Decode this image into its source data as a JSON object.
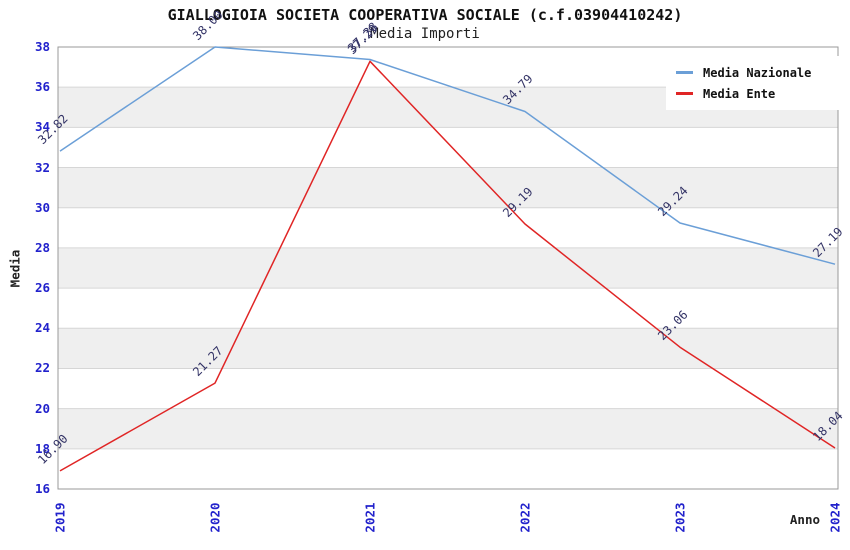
{
  "header": {
    "title": "GIALLOGIOIA SOCIETA COOPERATIVA SOCIALE (c.f.03904410242)",
    "subtitle": "Media Importi"
  },
  "chart_data": {
    "type": "line",
    "title": "GIALLOGIOIA SOCIETA COOPERATIVA SOCIALE (c.f.03904410242)",
    "subtitle": "Media Importi",
    "xlabel": "Anno",
    "ylabel": "Media",
    "categories": [
      "2019",
      "2020",
      "2021",
      "2022",
      "2023",
      "2024"
    ],
    "y_ticks": [
      "16",
      "18",
      "20",
      "22",
      "24",
      "26",
      "28",
      "30",
      "32",
      "34",
      "36",
      "38"
    ],
    "ylim": [
      16,
      38
    ],
    "grid": "horizontal gridlines with alternating gray/white bands",
    "legend_position": "top-right",
    "series": [
      {
        "name": "Media Nazionale",
        "color": "#6b9fd7",
        "values": [
          32.82,
          38.0,
          37.38,
          34.79,
          29.24,
          27.19
        ],
        "labels": [
          "32.82",
          "38.00",
          "37.38",
          "34.79",
          "29.24",
          "27.19"
        ]
      },
      {
        "name": "Media Ente",
        "color": "#e02525",
        "values": [
          16.9,
          21.27,
          37.29,
          29.19,
          23.06,
          18.04
        ],
        "labels": [
          "16.90",
          "21.27",
          "37.29",
          "29.19",
          "23.06",
          "18.04"
        ]
      }
    ]
  },
  "colors": {
    "tick_label": "#2222cc",
    "data_label": "#333366",
    "band_gray": "#efefef",
    "gridline": "#d6d6d6",
    "plot_border": "#999999",
    "background": "#ffffff"
  }
}
